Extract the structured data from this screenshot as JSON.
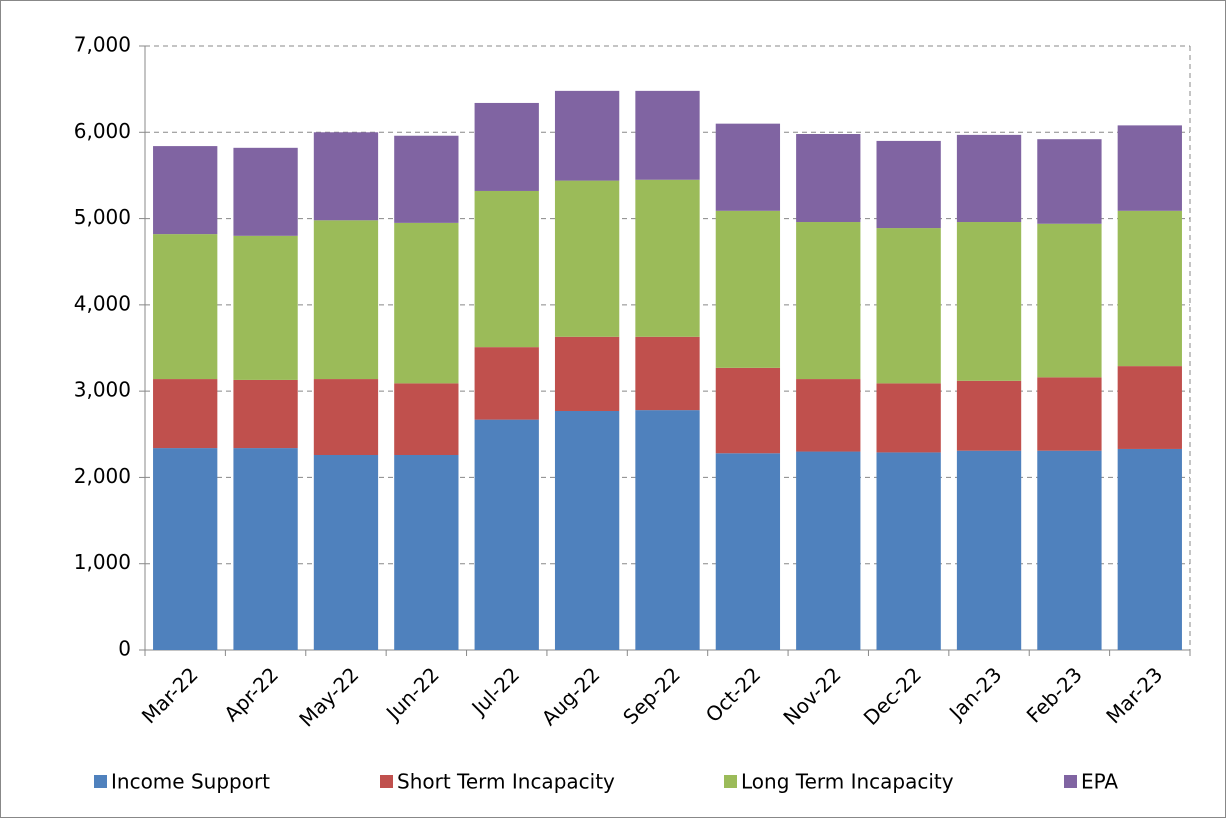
{
  "chart_data": {
    "type": "stacked-bar",
    "categories": [
      "Mar-22",
      "Apr-22",
      "May-22",
      "Jun-22",
      "Jul-22",
      "Aug-22",
      "Sep-22",
      "Oct-22",
      "Nov-22",
      "Dec-22",
      "Jan-23",
      "Feb-23",
      "Mar-23"
    ],
    "series": [
      {
        "name": "Income Support",
        "color": "#4f81bd",
        "values": [
          2340,
          2340,
          2260,
          2260,
          2670,
          2770,
          2780,
          2280,
          2300,
          2290,
          2310,
          2310,
          2330
        ]
      },
      {
        "name": "Short Term Incapacity",
        "color": "#c0504d",
        "values": [
          800,
          790,
          880,
          830,
          840,
          860,
          850,
          990,
          840,
          800,
          810,
          850,
          960
        ]
      },
      {
        "name": "Long Term Incapacity",
        "color": "#9bbb59",
        "values": [
          1680,
          1670,
          1840,
          1860,
          1810,
          1810,
          1820,
          1820,
          1820,
          1800,
          1840,
          1780,
          1800
        ]
      },
      {
        "name": "EPA",
        "color": "#8064a2",
        "values": [
          1020,
          1020,
          1020,
          1010,
          1020,
          1040,
          1030,
          1010,
          1020,
          1010,
          1010,
          980,
          990
        ]
      }
    ],
    "ylim": [
      0,
      7000
    ],
    "yticks": [
      0,
      {
        "value": 1000,
        "label": "1,000"
      },
      {
        "value": 2000,
        "label": "2,000"
      },
      {
        "value": 3000,
        "label": "3,000"
      },
      {
        "value": 4000,
        "label": "4,000"
      },
      {
        "value": 5000,
        "label": "5,000"
      },
      {
        "value": 6000,
        "label": "6,000"
      },
      {
        "value": 7000,
        "label": "7,000"
      }
    ],
    "grid": true,
    "legend": "bottom"
  }
}
